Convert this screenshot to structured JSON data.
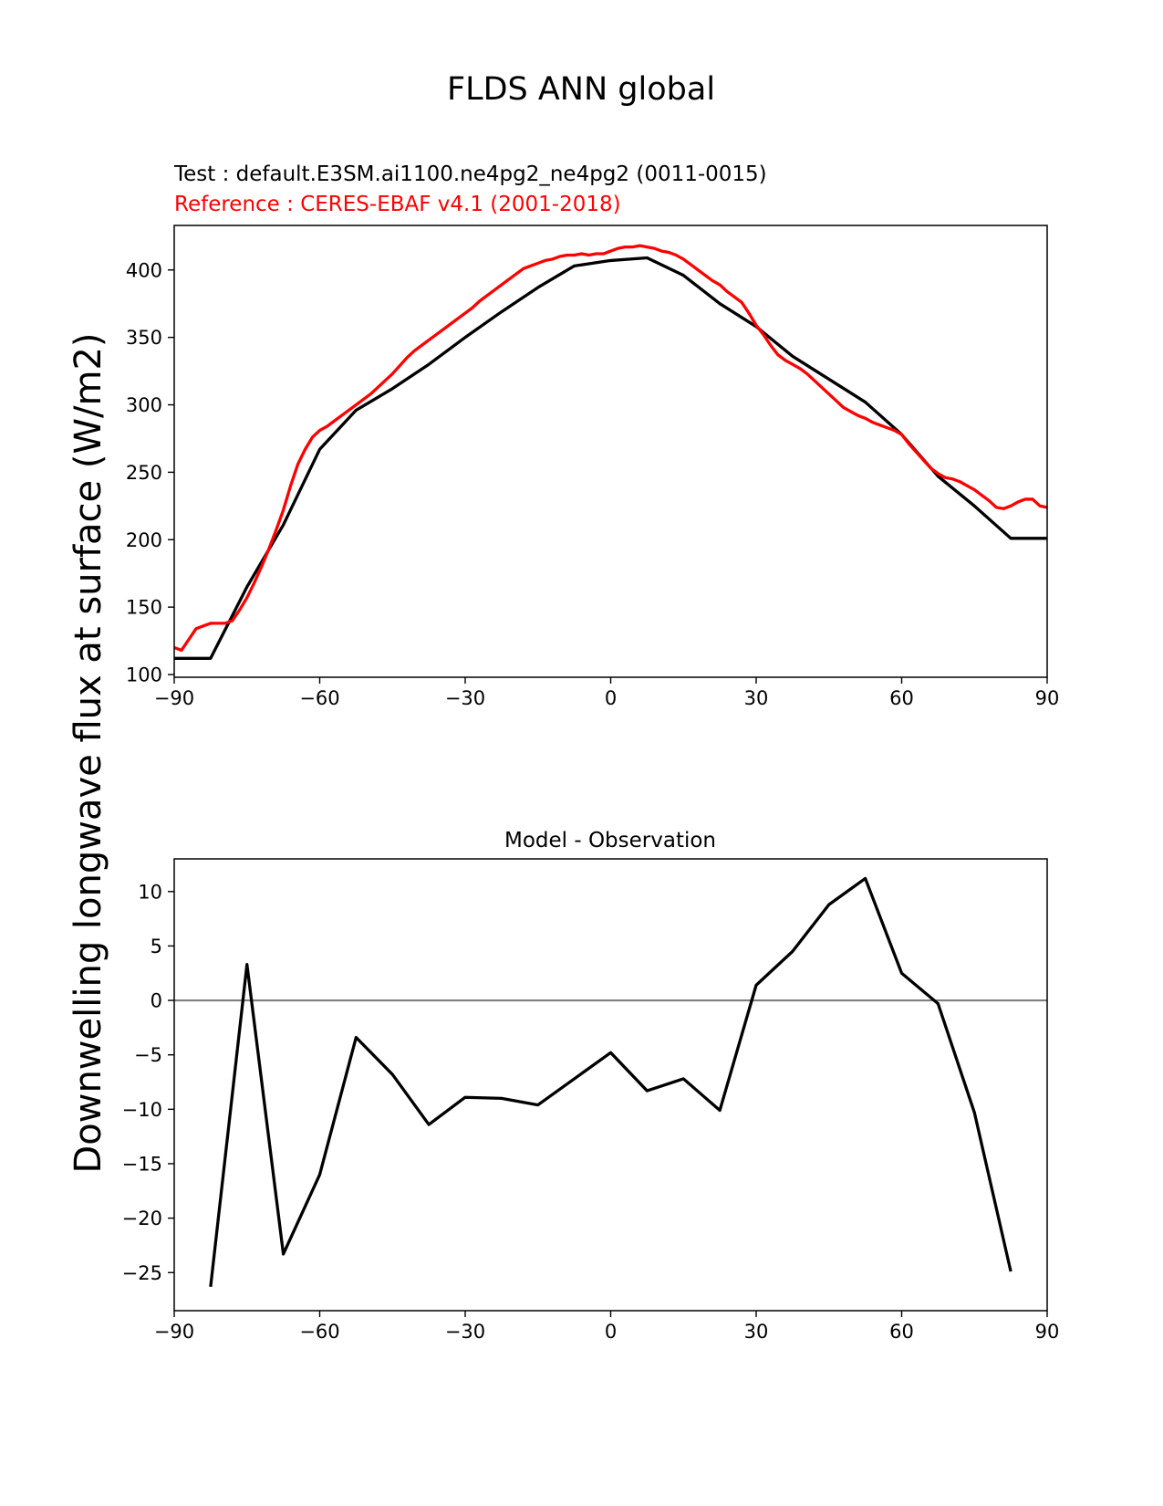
{
  "figure": {
    "suptitle": "FLDS ANN global",
    "ylabel": "Downwelling longwave flux at surface (W/m2)",
    "line_color_test": "#000000",
    "line_color_reference": "#ff0000",
    "zero_line_color": "#808080"
  },
  "chart_data": [
    {
      "type": "line",
      "subtitle_test": "Test : default.E3SM.ai1100.ne4pg2_ne4pg2 (0011-0015)",
      "subtitle_reference": "Reference : CERES-EBAF v4.1 (2001-2018)",
      "ylabel": "Downwelling longwave flux at surface (W/m2)",
      "xlim": [
        -90,
        90
      ],
      "ylim": [
        98,
        433
      ],
      "xticks": [
        -90,
        -60,
        -30,
        0,
        30,
        60,
        90
      ],
      "xtick_labels": [
        "−90",
        "−60",
        "−30",
        "0",
        "30",
        "60",
        "90"
      ],
      "yticks": [
        100,
        150,
        200,
        250,
        300,
        350,
        400
      ],
      "ytick_labels": [
        "100",
        "150",
        "200",
        "250",
        "300",
        "350",
        "400"
      ],
      "series": [
        {
          "role": "test",
          "color": "#000000",
          "x": [
            -90,
            -82.5,
            -75,
            -67.5,
            -60,
            -52.5,
            -45,
            -37.5,
            -30,
            -22.5,
            -15,
            -7.5,
            0,
            7.5,
            15,
            22.5,
            30,
            37.5,
            45,
            52.5,
            60,
            67.5,
            75,
            82.5,
            90
          ],
          "y": [
            112,
            112,
            165,
            211,
            267,
            296,
            312,
            330,
            350,
            369,
            387,
            403,
            407,
            409,
            396,
            375,
            358,
            336,
            319,
            302,
            278,
            247,
            225,
            201,
            201
          ]
        },
        {
          "role": "reference",
          "color": "#ff0000",
          "x": [
            -90,
            -88.5,
            -87,
            -85.5,
            -84,
            -82.5,
            -81,
            -79.5,
            -78,
            -76.5,
            -75,
            -73.5,
            -72,
            -70.5,
            -69,
            -67.5,
            -66,
            -64.5,
            -63,
            -61.5,
            -60,
            -58.5,
            -57,
            -55.5,
            -54,
            -52.5,
            -51,
            -49.5,
            -48,
            -46.5,
            -45,
            -43.5,
            -42,
            -40.5,
            -39,
            -37.5,
            -36,
            -34.5,
            -33,
            -31.5,
            -30,
            -28.5,
            -27,
            -25.5,
            -24,
            -22.5,
            -21,
            -19.5,
            -18,
            -16.5,
            -15,
            -13.5,
            -12,
            -10.5,
            -9,
            -7.5,
            -6,
            -4.5,
            -3,
            -1.5,
            0,
            1.5,
            3,
            4.5,
            6,
            7.5,
            9,
            10.5,
            12,
            13.5,
            15,
            16.5,
            18,
            19.5,
            21,
            22.5,
            24,
            25.5,
            27,
            28.5,
            30,
            31.5,
            33,
            34.5,
            36,
            37.5,
            39,
            40.5,
            42,
            43.5,
            45,
            46.5,
            48,
            49.5,
            51,
            52.5,
            54,
            55.5,
            57,
            58.5,
            60,
            61.5,
            63,
            64.5,
            66,
            67.5,
            69,
            70.5,
            72,
            73.5,
            75,
            76.5,
            78,
            79.5,
            81,
            82.5,
            84,
            85.5,
            87,
            88.5,
            90
          ],
          "y": [
            120,
            118,
            126,
            134,
            136,
            138,
            138,
            138,
            140,
            148,
            157,
            168,
            180,
            193,
            207,
            222,
            240,
            256,
            267,
            276,
            281,
            284,
            288,
            292,
            296,
            300,
            304,
            308,
            313,
            318,
            323,
            329,
            335,
            340,
            344,
            348,
            352,
            356,
            360,
            364,
            368,
            372,
            377,
            381,
            385,
            389,
            393,
            397,
            401,
            403,
            405,
            407,
            408,
            410,
            411,
            411,
            412,
            411,
            412,
            412,
            414,
            416,
            417,
            417,
            418,
            417,
            416,
            414,
            413,
            411,
            408,
            404,
            400,
            396,
            392,
            389,
            384,
            380,
            376,
            368,
            359,
            352,
            344,
            337,
            333,
            330,
            327,
            323,
            318,
            313,
            308,
            303,
            298,
            295,
            292,
            290,
            287,
            285,
            283,
            281,
            278,
            271,
            265,
            259,
            253,
            249,
            246,
            245,
            243,
            240,
            237,
            233,
            229,
            224,
            223,
            225,
            228,
            230,
            230,
            225,
            224
          ]
        }
      ]
    },
    {
      "type": "line",
      "title": "Model - Observation",
      "xlim": [
        -90,
        90
      ],
      "ylim": [
        -28.5,
        13
      ],
      "xticks": [
        -90,
        -60,
        -30,
        0,
        30,
        60,
        90
      ],
      "xtick_labels": [
        "−90",
        "−60",
        "−30",
        "0",
        "30",
        "60",
        "90"
      ],
      "yticks": [
        10,
        5,
        0,
        -5,
        -10,
        -15,
        -20,
        -25
      ],
      "ytick_labels": [
        "10",
        "5",
        "0",
        "−5",
        "−10",
        "−15",
        "−20",
        "−25"
      ],
      "zero_line": 0,
      "series": [
        {
          "role": "difference",
          "color": "#000000",
          "x": [
            -82.5,
            -75,
            -67.5,
            -60,
            -52.5,
            -45,
            -37.5,
            -30,
            -22.5,
            -15,
            -7.5,
            0,
            7.5,
            15,
            22.5,
            30,
            37.5,
            45,
            52.5,
            60,
            67.5,
            75,
            82.5
          ],
          "y": [
            -26.3,
            3.3,
            -23.3,
            -16,
            -3.4,
            -6.8,
            -11.4,
            -8.9,
            -9,
            -9.6,
            -7.2,
            -4.8,
            -8.3,
            -7.2,
            -10.1,
            1.4,
            4.5,
            8.8,
            11.2,
            2.5,
            -0.3,
            -10.3,
            -24.9
          ]
        }
      ]
    }
  ]
}
